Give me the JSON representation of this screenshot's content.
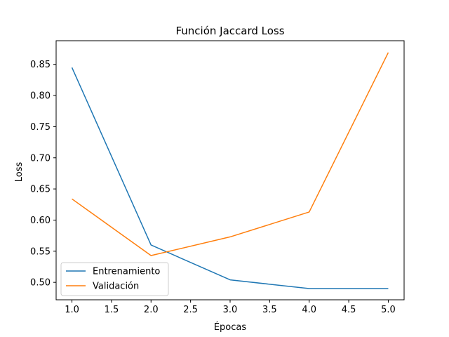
{
  "chart_data": {
    "type": "line",
    "title": "Función Jaccard Loss",
    "xlabel": "Épocas",
    "ylabel": "Loss",
    "x": [
      1.0,
      2.0,
      3.0,
      4.0,
      5.0
    ],
    "xlim": [
      0.8,
      5.2
    ],
    "ylim": [
      0.472,
      0.888
    ],
    "xticks": [
      "1.0",
      "1.5",
      "2.0",
      "2.5",
      "3.0",
      "3.5",
      "4.0",
      "4.5",
      "5.0"
    ],
    "yticks": [
      "0.50",
      "0.55",
      "0.60",
      "0.65",
      "0.70",
      "0.75",
      "0.80",
      "0.85"
    ],
    "grid": false,
    "legend_position": "lower-left",
    "series": [
      {
        "name": "Entrenamiento",
        "color": "#1f77b4",
        "values": [
          0.845,
          0.56,
          0.504,
          0.49,
          0.49
        ]
      },
      {
        "name": "Validación",
        "color": "#ff7f0e",
        "values": [
          0.634,
          0.543,
          0.573,
          0.613,
          0.869
        ]
      }
    ]
  }
}
